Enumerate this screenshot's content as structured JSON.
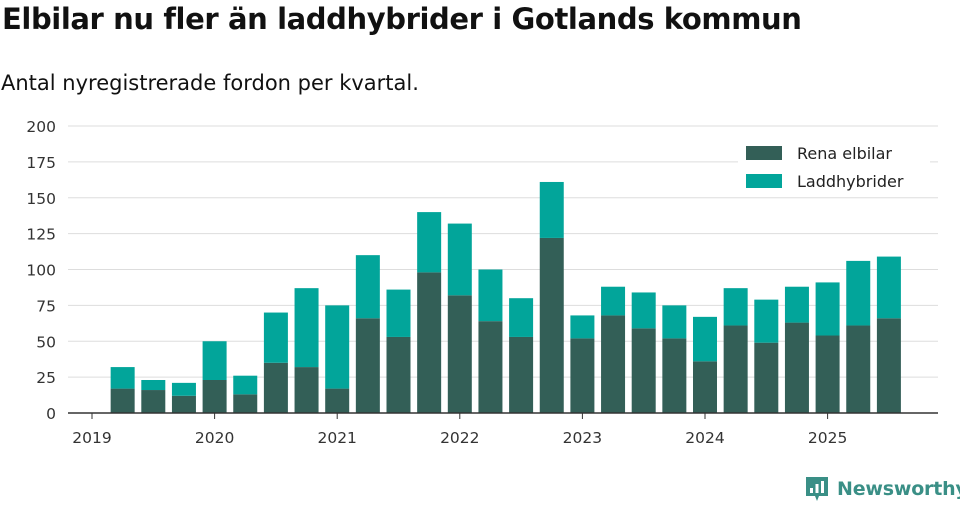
{
  "header": {
    "title": "Elbilar nu fler än laddhybrider i Gotlands kommun",
    "subtitle": "Antal nyregistrerade fordon per kvartal."
  },
  "brand": {
    "name": "Newsworthy",
    "icon": "newsworthy-logo-icon"
  },
  "colors": {
    "elbilar": "#335f57",
    "laddhybrider": "#02a59a",
    "grid": "#dddddd",
    "axis": "#333333",
    "brand": "#3a8f86"
  },
  "chart_data": {
    "type": "bar",
    "stacked": true,
    "title": "Elbilar nu fler än laddhybrider i Gotlands kommun",
    "subtitle": "Antal nyregistrerade fordon per kvartal.",
    "xlabel": "",
    "ylabel": "",
    "ylim": [
      0,
      200
    ],
    "yticks": [
      0,
      25,
      50,
      75,
      100,
      125,
      150,
      175,
      200
    ],
    "grid": true,
    "legend_position": "top-right",
    "x_tick_labels": [
      "2019",
      "2020",
      "2021",
      "2022",
      "2023",
      "2024",
      "2025"
    ],
    "x_tick_quarter_index": [
      0,
      4,
      8,
      12,
      16,
      20,
      24
    ],
    "categories": [
      "2019-Q2",
      "2019-Q3",
      "2019-Q4",
      "2020-Q1",
      "2020-Q2",
      "2020-Q3",
      "2020-Q4",
      "2021-Q1",
      "2021-Q2",
      "2021-Q3",
      "2021-Q4",
      "2022-Q1",
      "2022-Q2",
      "2022-Q3",
      "2022-Q4",
      "2023-Q1",
      "2023-Q2",
      "2023-Q3",
      "2023-Q4",
      "2024-Q1",
      "2024-Q2",
      "2024-Q3",
      "2024-Q4",
      "2025-Q1",
      "2025-Q2",
      "2025-Q3"
    ],
    "series": [
      {
        "name": "Rena elbilar",
        "values": [
          17,
          16,
          12,
          23,
          13,
          35,
          32,
          17,
          66,
          53,
          98,
          82,
          64,
          53,
          122,
          52,
          68,
          59,
          52,
          36,
          61,
          49,
          63,
          54,
          61,
          66
        ]
      },
      {
        "name": "Laddhybrider",
        "values": [
          15,
          7,
          9,
          27,
          13,
          35,
          55,
          58,
          44,
          33,
          42,
          50,
          36,
          27,
          39,
          16,
          20,
          25,
          23,
          31,
          26,
          30,
          25,
          37,
          45,
          43
        ]
      }
    ]
  }
}
